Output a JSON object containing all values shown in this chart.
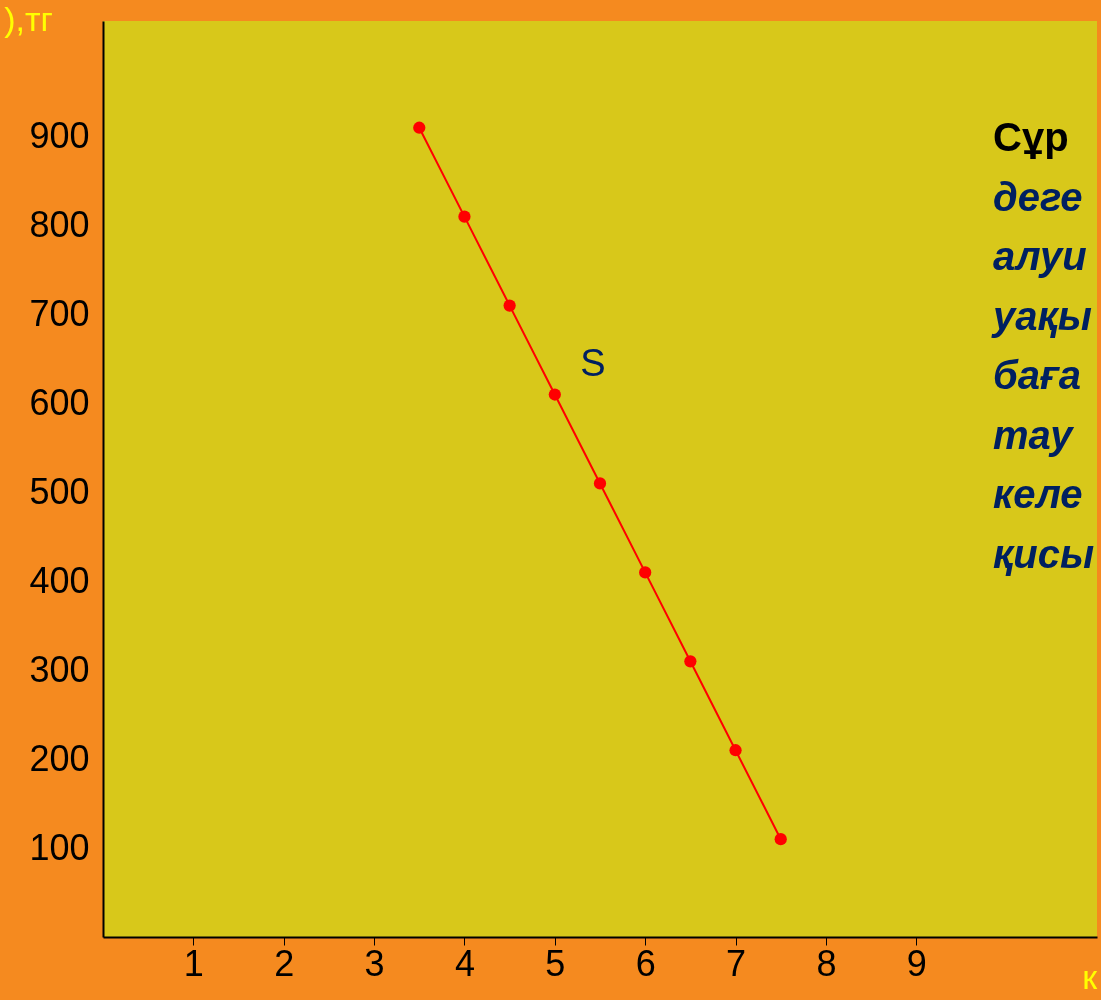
{
  "chart_data": {
    "type": "line",
    "ylabel": "),тг",
    "xlabel": "к",
    "annotations": [
      "Сұр",
      "деге",
      "алуи",
      "уақы",
      "баға",
      "тау",
      "келе",
      "қисы"
    ],
    "x": [
      3.5,
      4,
      4.5,
      5,
      5.5,
      6,
      6.5,
      7,
      7.5
    ],
    "series": [
      {
        "name": "S",
        "color": "#ff0000",
        "values": [
          910,
          810,
          710,
          610,
          510,
          410,
          310,
          210,
          110
        ]
      }
    ],
    "xlim": [
      0,
      11
    ],
    "ylim": [
      0,
      1030
    ],
    "xticks": [
      1,
      2,
      3,
      4,
      5,
      6,
      7,
      8,
      9
    ],
    "yticks": [
      100,
      200,
      300,
      400,
      500,
      600,
      700,
      800,
      900
    ],
    "grid": false,
    "legend": false,
    "marker": "circle",
    "line_style": "solid"
  }
}
